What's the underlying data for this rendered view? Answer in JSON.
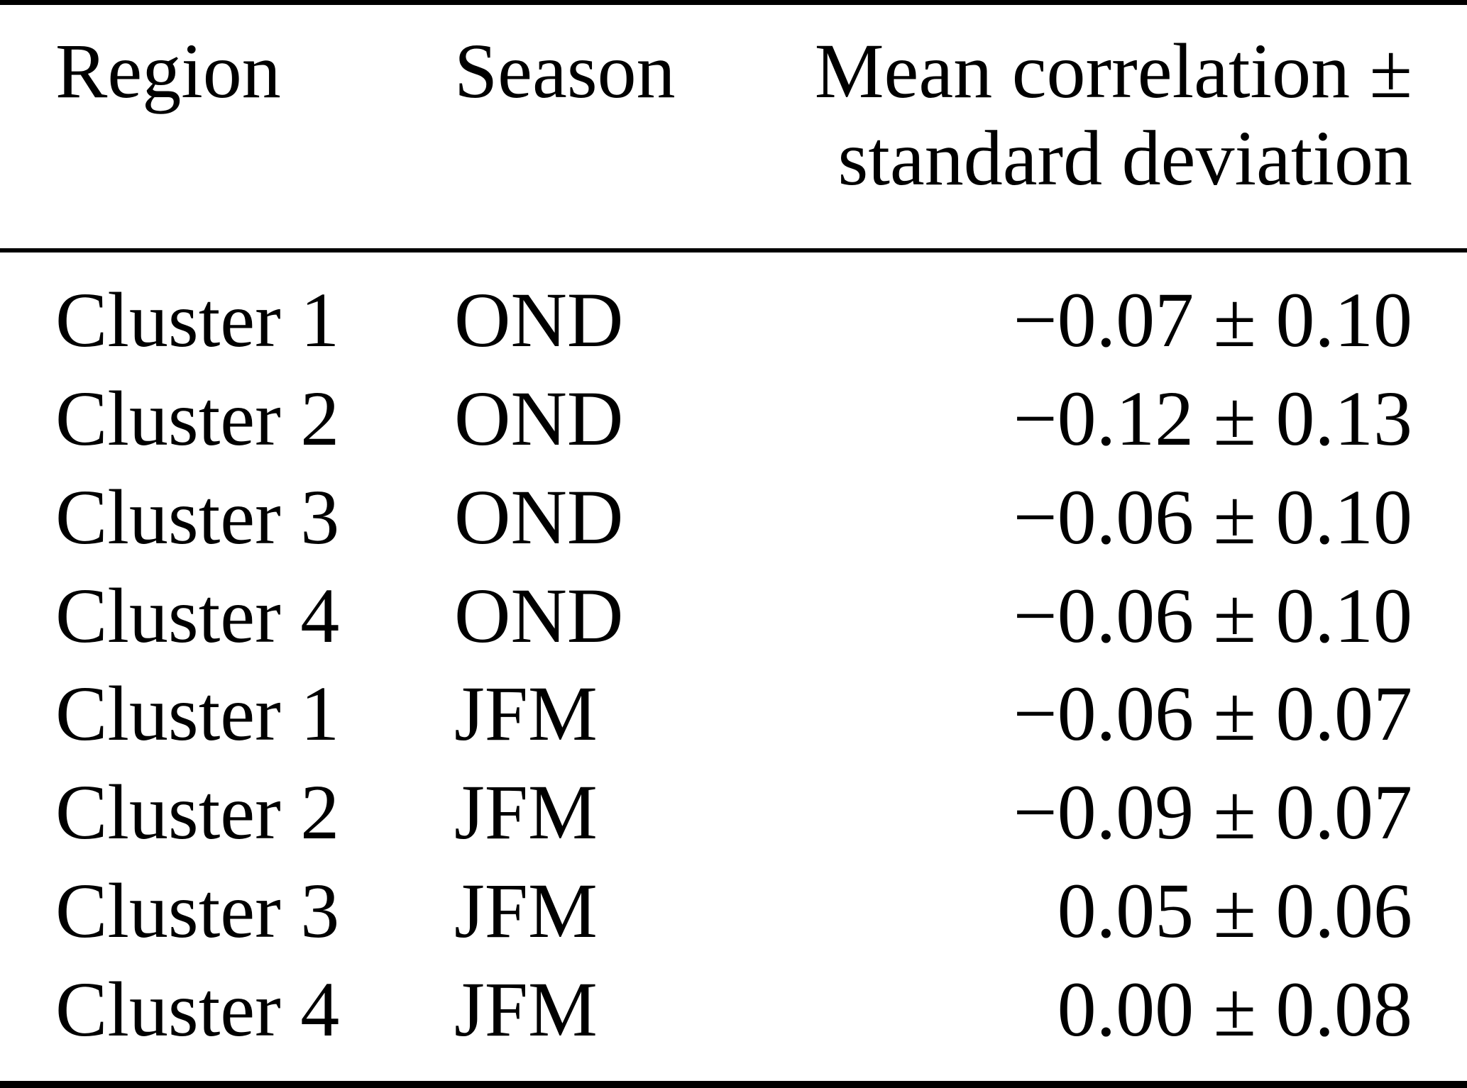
{
  "page": {
    "background_color": "#ffffff",
    "text_color": "#000000",
    "rule_color": "#000000"
  },
  "table": {
    "headers": {
      "region": "Region",
      "season": "Season",
      "value_line1": "Mean correlation ±",
      "value_line2": "standard deviation"
    },
    "rows": [
      {
        "region": "Cluster 1",
        "season": "OND",
        "value": "−0.07 ± 0.10"
      },
      {
        "region": "Cluster 2",
        "season": "OND",
        "value": "−0.12 ± 0.13"
      },
      {
        "region": "Cluster 3",
        "season": "OND",
        "value": "−0.06 ± 0.10"
      },
      {
        "region": "Cluster 4",
        "season": "OND",
        "value": "−0.06 ± 0.10"
      },
      {
        "region": "Cluster 1",
        "season": "JFM",
        "value": "−0.06 ± 0.07"
      },
      {
        "region": "Cluster 2",
        "season": "JFM",
        "value": "−0.09 ± 0.07"
      },
      {
        "region": "Cluster 3",
        "season": "JFM",
        "value": "0.05 ± 0.06"
      },
      {
        "region": "Cluster 4",
        "season": "JFM",
        "value": "0.00 ± 0.08"
      }
    ]
  },
  "chart_data": {
    "type": "table",
    "title": "",
    "columns": [
      "Region",
      "Season",
      "Mean correlation ± standard deviation"
    ],
    "series": [
      {
        "name": "OND",
        "categories": [
          "Cluster 1",
          "Cluster 2",
          "Cluster 3",
          "Cluster 4"
        ],
        "mean": [
          -0.07,
          -0.12,
          -0.06,
          -0.06
        ],
        "std": [
          0.1,
          0.13,
          0.1,
          0.1
        ]
      },
      {
        "name": "JFM",
        "categories": [
          "Cluster 1",
          "Cluster 2",
          "Cluster 3",
          "Cluster 4"
        ],
        "mean": [
          -0.06,
          -0.09,
          0.05,
          0.0
        ],
        "std": [
          0.07,
          0.07,
          0.06,
          0.08
        ]
      }
    ]
  }
}
